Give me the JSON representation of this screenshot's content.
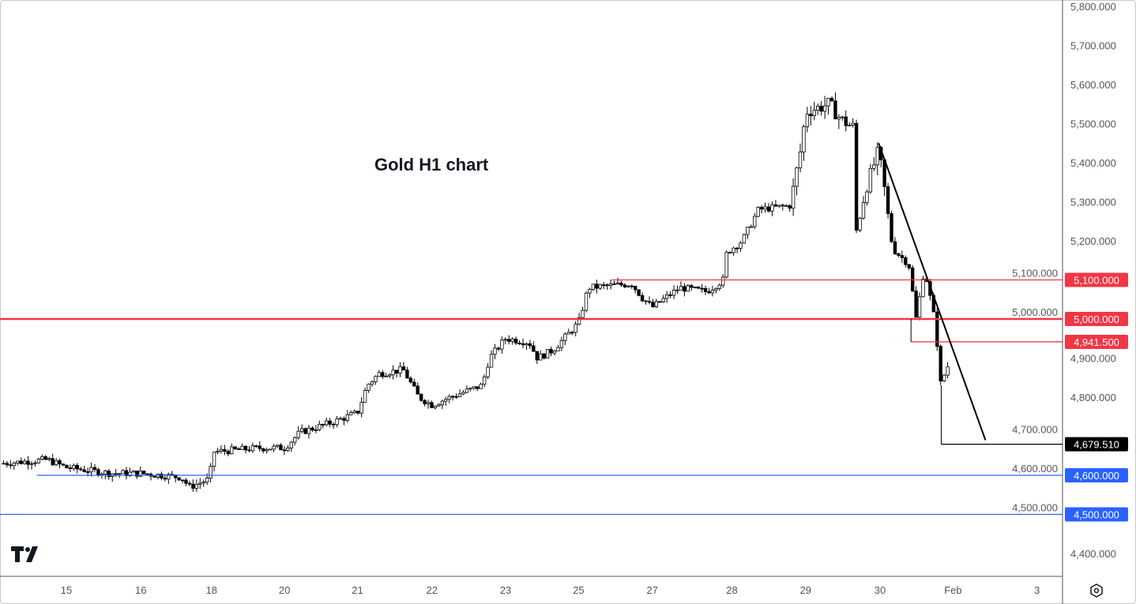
{
  "chart_data": {
    "type": "candlestick",
    "title": "Gold H1 chart",
    "instrument": "Gold",
    "timeframe": "H1",
    "ylim": [
      4350,
      5820
    ],
    "y_ticks": [
      "5,800.000",
      "5,700.000",
      "5,600.000",
      "5,500.000",
      "5,400.000",
      "5,300.000",
      "5,200.000",
      "5,100.000",
      "5,000.000",
      "4,900.000",
      "4,800.000",
      "4,700.000",
      "4,600.000",
      "4,500.000",
      "4,400.000"
    ],
    "y_tick_values": [
      5800,
      5700,
      5600,
      5500,
      5400,
      5300,
      5200,
      5100,
      5000,
      4900,
      4800,
      4700,
      4600,
      4500,
      4400
    ],
    "x_ticks": [
      {
        "label": "15",
        "day": 0
      },
      {
        "label": "16",
        "day": 1.01
      },
      {
        "label": "18",
        "day": 1.97
      },
      {
        "label": "20",
        "day": 2.96
      },
      {
        "label": "21",
        "day": 3.95
      },
      {
        "label": "22",
        "day": 4.96
      },
      {
        "label": "23",
        "day": 5.96
      },
      {
        "label": "25",
        "day": 6.95
      },
      {
        "label": "27",
        "day": 7.95
      },
      {
        "label": "28",
        "day": 9.03
      },
      {
        "label": "29",
        "day": 10.03
      },
      {
        "label": "30",
        "day": 11.04
      },
      {
        "label": "Feb",
        "day": 12.03
      },
      {
        "label": "3",
        "day": 13.17
      }
    ],
    "xlim_days": [
      -0.9,
      13.5
    ],
    "price_path": [
      [
        -0.9,
        4630
      ],
      [
        -0.26,
        4640
      ],
      [
        0,
        4620
      ],
      [
        0.6,
        4605
      ],
      [
        1.01,
        4605
      ],
      [
        1.56,
        4595
      ],
      [
        1.67,
        4570
      ],
      [
        1.94,
        4590
      ],
      [
        1.99,
        4660
      ],
      [
        2.64,
        4670
      ],
      [
        2.96,
        4670
      ],
      [
        3.17,
        4710
      ],
      [
        3.6,
        4735
      ],
      [
        3.95,
        4760
      ],
      [
        4.08,
        4830
      ],
      [
        4.24,
        4860
      ],
      [
        4.57,
        4870
      ],
      [
        4.78,
        4800
      ],
      [
        4.96,
        4780
      ],
      [
        5.21,
        4800
      ],
      [
        5.64,
        4830
      ],
      [
        5.74,
        4900
      ],
      [
        5.96,
        4950
      ],
      [
        6.28,
        4940
      ],
      [
        6.39,
        4900
      ],
      [
        6.6,
        4920
      ],
      [
        6.95,
        4990
      ],
      [
        7.08,
        5080
      ],
      [
        7.67,
        5090
      ],
      [
        7.83,
        5050
      ],
      [
        7.95,
        5030
      ],
      [
        8.32,
        5080
      ],
      [
        8.69,
        5070
      ],
      [
        8.91,
        5100
      ],
      [
        8.96,
        5170
      ],
      [
        9.17,
        5200
      ],
      [
        9.39,
        5280
      ],
      [
        9.82,
        5290
      ],
      [
        9.98,
        5450
      ],
      [
        10.03,
        5530
      ],
      [
        10.35,
        5550
      ],
      [
        10.51,
        5510
      ],
      [
        10.68,
        5490
      ],
      [
        10.72,
        5220
      ],
      [
        10.84,
        5330
      ],
      [
        11.02,
        5430
      ],
      [
        11.08,
        5360
      ],
      [
        11.21,
        5180
      ],
      [
        11.43,
        5140
      ],
      [
        11.53,
        5000
      ],
      [
        11.64,
        5130
      ],
      [
        11.8,
        4980
      ],
      [
        11.85,
        4830
      ],
      [
        11.96,
        4880
      ]
    ],
    "levels": [
      {
        "label": "5,100.000",
        "value": 5100,
        "color": "#f23645",
        "from_day": 7.4,
        "width": "thin"
      },
      {
        "label": "5,000.000",
        "value": 5000,
        "color": "#f23645",
        "from_day": -0.9,
        "width": "thick"
      },
      {
        "label": "4,941.500",
        "value": 4941.5,
        "color": "#f23645",
        "from_day": 11.46,
        "width": "thin"
      },
      {
        "label": "4,679.510",
        "value": 4679.51,
        "color": "#000000",
        "from_day": 11.87,
        "width": "thin"
      },
      {
        "label": "4,600.000",
        "value": 4600,
        "color": "#2962ff",
        "from_day": -0.4,
        "width": "thin"
      },
      {
        "label": "4,500.000",
        "value": 4500,
        "color": "#2962ff",
        "from_day": -0.9,
        "width": "thin"
      }
    ],
    "trendline": {
      "from": [
        11.02,
        5450
      ],
      "to": [
        12.47,
        4690
      ],
      "color": "#000000"
    }
  },
  "colors": {
    "up": "#ffffff",
    "down": "#000000",
    "axis_text": "#555555"
  }
}
